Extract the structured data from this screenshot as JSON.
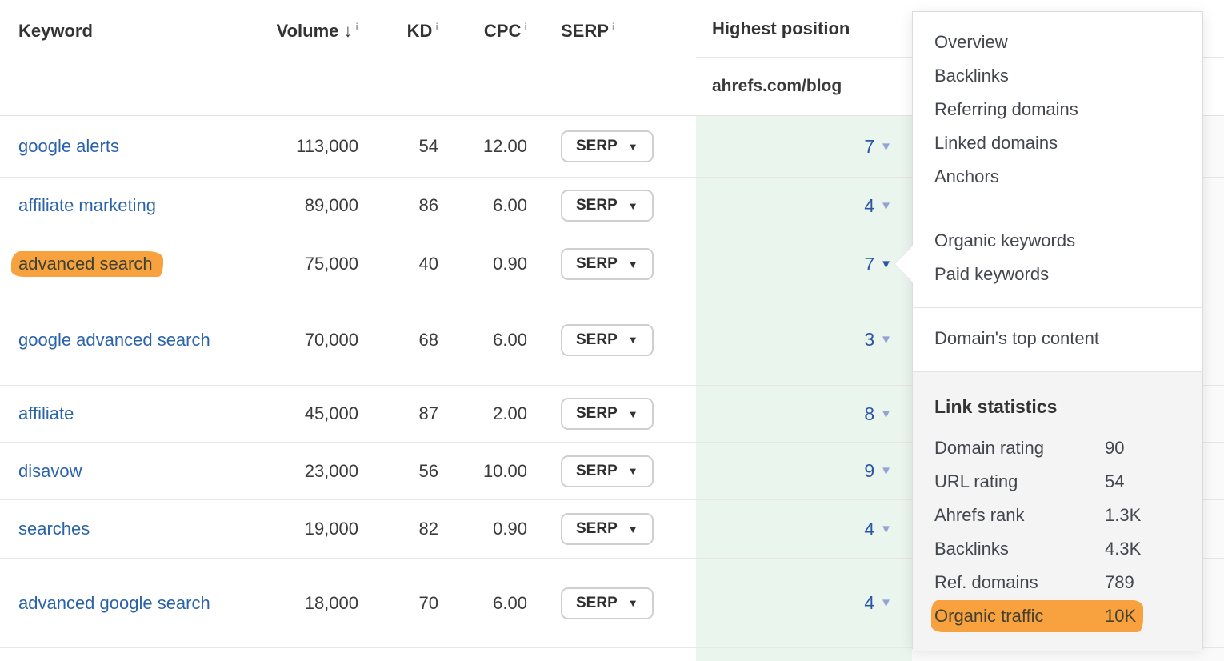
{
  "table": {
    "columns": {
      "keyword": "Keyword",
      "volume": "Volume",
      "kd": "KD",
      "cpc": "CPC",
      "serp": "SERP",
      "highest_position": "Highest position",
      "target": "ahrefs.com/blog"
    },
    "serp_button_label": "SERP",
    "rows": [
      {
        "keyword": "google alerts",
        "volume": "113,000",
        "kd": "54",
        "cpc": "12.00",
        "position": "7",
        "highlighted": false,
        "menu_open": false
      },
      {
        "keyword": "affiliate marketing",
        "volume": "89,000",
        "kd": "86",
        "cpc": "6.00",
        "position": "4",
        "highlighted": false,
        "menu_open": false
      },
      {
        "keyword": "advanced search",
        "volume": "75,000",
        "kd": "40",
        "cpc": "0.90",
        "position": "7",
        "highlighted": true,
        "menu_open": true
      },
      {
        "keyword": "google advanced search",
        "volume": "70,000",
        "kd": "68",
        "cpc": "6.00",
        "position": "3",
        "highlighted": false,
        "menu_open": false
      },
      {
        "keyword": "affiliate",
        "volume": "45,000",
        "kd": "87",
        "cpc": "2.00",
        "position": "8",
        "highlighted": false,
        "menu_open": false
      },
      {
        "keyword": "disavow",
        "volume": "23,000",
        "kd": "56",
        "cpc": "10.00",
        "position": "9",
        "highlighted": false,
        "menu_open": false
      },
      {
        "keyword": "searches",
        "volume": "19,000",
        "kd": "82",
        "cpc": "0.90",
        "position": "4",
        "highlighted": false,
        "menu_open": false
      },
      {
        "keyword": "advanced google search",
        "volume": "18,000",
        "kd": "70",
        "cpc": "6.00",
        "position": "4",
        "highlighted": false,
        "menu_open": false
      }
    ]
  },
  "menu": {
    "group1": [
      "Overview",
      "Backlinks",
      "Referring domains",
      "Linked domains",
      "Anchors"
    ],
    "group2": [
      "Organic keywords",
      "Paid keywords"
    ],
    "group3": [
      "Domain's top content"
    ],
    "link_statistics": {
      "title": "Link statistics",
      "stats": [
        {
          "label": "Domain rating",
          "value": "90",
          "highlighted": false
        },
        {
          "label": "URL rating",
          "value": "54",
          "highlighted": false
        },
        {
          "label": "Ahrefs rank",
          "value": "1.3K",
          "highlighted": false
        },
        {
          "label": "Backlinks",
          "value": "4.3K",
          "highlighted": false
        },
        {
          "label": "Ref. domains",
          "value": "789",
          "highlighted": false
        },
        {
          "label": "Organic traffic",
          "value": "10K",
          "highlighted": true
        }
      ]
    }
  },
  "icons": {
    "caret_down": "▼",
    "sort_desc": "↓",
    "info": "i"
  },
  "colors": {
    "highlight_orange": "#F7A23E",
    "link_blue": "#2B63AB",
    "position_blue": "#2B55A7",
    "position_column_green": "#EAF5EE"
  }
}
